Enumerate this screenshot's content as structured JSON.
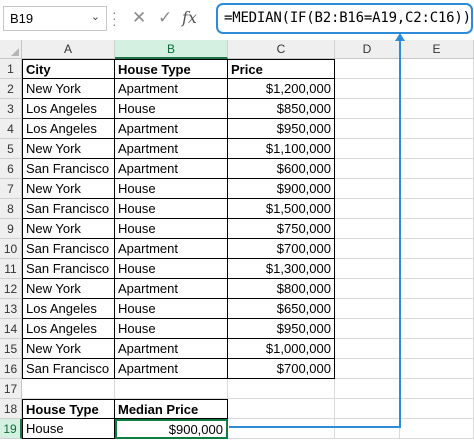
{
  "formula_bar": {
    "name_box": "B19",
    "cancel_icon": "cancel-icon",
    "enter_icon": "enter-icon",
    "fx_label": "fx",
    "formula": "=MEDIAN(IF(B2:B16=A19,C2:C16))"
  },
  "columns": [
    "A",
    "B",
    "C",
    "D",
    "E"
  ],
  "rows": [
    "1",
    "2",
    "3",
    "4",
    "5",
    "6",
    "7",
    "8",
    "9",
    "10",
    "11",
    "12",
    "13",
    "14",
    "15",
    "16",
    "17",
    "18",
    "19"
  ],
  "table": {
    "headers": [
      "City",
      "House Type",
      "Price"
    ],
    "rows": [
      [
        "New York",
        "Apartment",
        "$1,200,000"
      ],
      [
        "Los Angeles",
        "House",
        "$850,000"
      ],
      [
        "Los Angeles",
        "Apartment",
        "$950,000"
      ],
      [
        "New York",
        "Apartment",
        "$1,100,000"
      ],
      [
        "San Francisco",
        "Apartment",
        "$600,000"
      ],
      [
        "New York",
        "House",
        "$900,000"
      ],
      [
        "San Francisco",
        "House",
        "$1,500,000"
      ],
      [
        "New York",
        "House",
        "$750,000"
      ],
      [
        "San Francisco",
        "Apartment",
        "$700,000"
      ],
      [
        "San Francisco",
        "House",
        "$1,300,000"
      ],
      [
        "New York",
        "Apartment",
        "$800,000"
      ],
      [
        "Los Angeles",
        "House",
        "$650,000"
      ],
      [
        "Los Angeles",
        "House",
        "$950,000"
      ],
      [
        "New York",
        "Apartment",
        "$1,000,000"
      ],
      [
        "San Francisco",
        "Apartment",
        "$700,000"
      ]
    ]
  },
  "summary": {
    "headers": [
      "House Type",
      "Median Price"
    ],
    "values": [
      "House",
      "$900,000"
    ]
  },
  "colors": {
    "accent": "#2e8bd8",
    "selection": "#107c41"
  }
}
